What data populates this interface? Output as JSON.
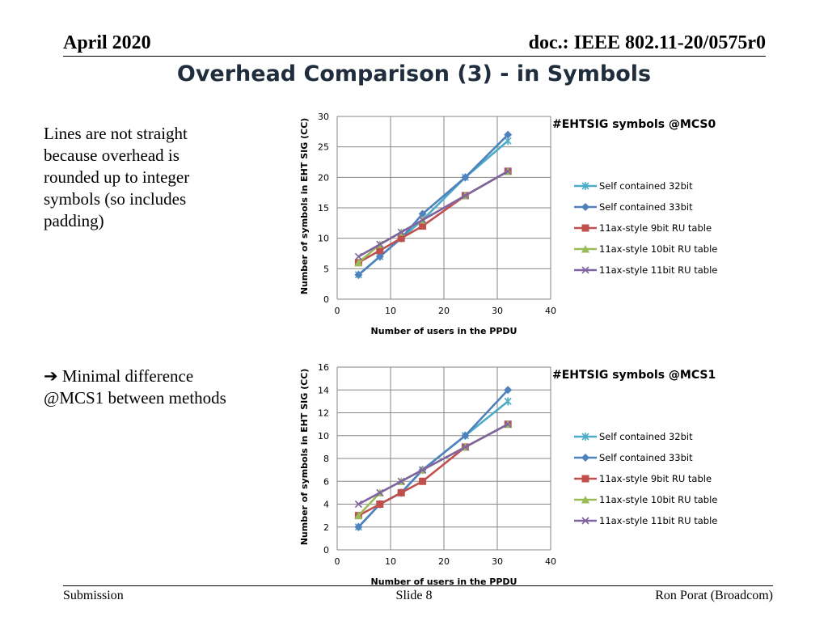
{
  "header": {
    "date": "April 2020",
    "doc": "doc.: IEEE 802.11-20/0575r0"
  },
  "title": "Overhead Comparison (3) - in Symbols",
  "notes": [
    "Lines are not straight because overhead is rounded up to integer symbols (so includes padding)",
    "Minimal difference @MCS1 between methods"
  ],
  "footer": {
    "left": "Submission",
    "center": "Slide 8",
    "right": "Ron Porat (Broadcom)"
  },
  "colors": {
    "s32": "#4bacc6",
    "s33": "#4f81bd",
    "r9": "#c0504d",
    "r10": "#9bbb59",
    "r11": "#8064a2"
  },
  "chart_data": [
    {
      "type": "line",
      "title": "#EHTSIG symbols @MCS0",
      "xlabel": "Number of users in the PPDU",
      "ylabel": "Number of symbols in EHT SIG (CC)",
      "xlim": [
        0,
        40
      ],
      "ylim": [
        0,
        30
      ],
      "xticks": [
        0,
        10,
        20,
        30,
        40
      ],
      "yticks": [
        0,
        5,
        10,
        15,
        20,
        25,
        30
      ],
      "grid": true,
      "legend": "right",
      "x": [
        4,
        8,
        12,
        16,
        24,
        32
      ],
      "series": [
        {
          "name": "Self contained 32bit",
          "marker": "star",
          "color": "#4bacc6",
          "values": [
            4,
            7,
            10,
            13,
            20,
            26
          ]
        },
        {
          "name": "Self contained 33bit",
          "marker": "diamond",
          "color": "#4f81bd",
          "values": [
            4,
            7,
            10,
            14,
            20,
            27
          ]
        },
        {
          "name": "11ax-style 9bit RU table",
          "marker": "square",
          "color": "#c0504d",
          "values": [
            6,
            8,
            10,
            12,
            17,
            21
          ]
        },
        {
          "name": "11ax-style 10bit RU table",
          "marker": "triangle",
          "color": "#9bbb59",
          "values": [
            6,
            9,
            11,
            13,
            17,
            21
          ]
        },
        {
          "name": "11ax-style 11bit RU table",
          "marker": "x",
          "color": "#8064a2",
          "values": [
            7,
            9,
            11,
            13,
            17,
            21
          ]
        }
      ]
    },
    {
      "type": "line",
      "title": "#EHTSIG symbols @MCS1",
      "xlabel": "Number of users in the PPDU",
      "ylabel": "Number of symbols in EHT SIG (CC)",
      "xlim": [
        0,
        40
      ],
      "ylim": [
        0,
        16
      ],
      "xticks": [
        0,
        10,
        20,
        30,
        40
      ],
      "yticks": [
        0,
        2,
        4,
        6,
        8,
        10,
        12,
        14,
        16
      ],
      "grid": true,
      "legend": "right",
      "x": [
        4,
        8,
        12,
        16,
        24,
        32
      ],
      "series": [
        {
          "name": "Self contained 32bit",
          "marker": "star",
          "color": "#4bacc6",
          "values": [
            2,
            4,
            5,
            7,
            10,
            13
          ]
        },
        {
          "name": "Self contained 33bit",
          "marker": "diamond",
          "color": "#4f81bd",
          "values": [
            2,
            4,
            5,
            7,
            10,
            14
          ]
        },
        {
          "name": "11ax-style 9bit RU table",
          "marker": "square",
          "color": "#c0504d",
          "values": [
            3,
            4,
            5,
            6,
            9,
            11
          ]
        },
        {
          "name": "11ax-style 10bit RU table",
          "marker": "triangle",
          "color": "#9bbb59",
          "values": [
            3,
            5,
            6,
            7,
            9,
            11
          ]
        },
        {
          "name": "11ax-style 11bit RU table",
          "marker": "x",
          "color": "#8064a2",
          "values": [
            4,
            5,
            6,
            7,
            9,
            11
          ]
        }
      ]
    }
  ]
}
